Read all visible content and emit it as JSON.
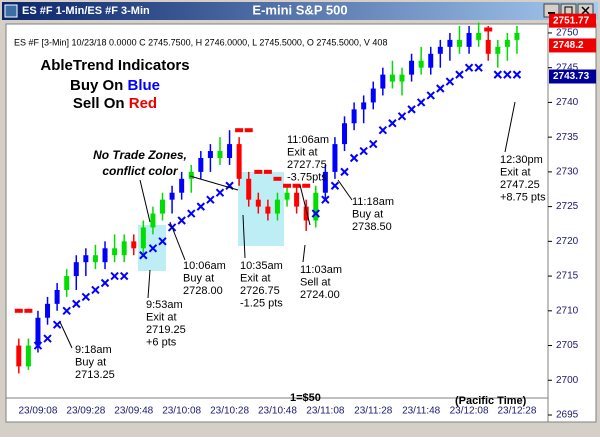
{
  "chart_data": {
    "type": "candlestick",
    "window_title": "ES #F 1-Min/ES #F 3-Min",
    "title": "E-mini S&P 500",
    "header_info": "ES #F [3-Min] 10/23/18  0.0000 C 2745.7500, H 2746.0000, L 2745.5000, O 2745.5000, V 408",
    "legend": {
      "heading": "AbleTrend Indicators",
      "buy": "Buy On ",
      "buy_color_word": "Blue",
      "sell": "Sell On ",
      "sell_color_word": "Red"
    },
    "categories": [
      null,
      null,
      "23/09:08",
      null,
      null,
      null,
      null,
      "23/09:28",
      null,
      null,
      null,
      null,
      "23/09:48",
      null,
      null,
      null,
      null,
      "23/10:08",
      null,
      null,
      null,
      null,
      "23/10:28",
      null,
      null,
      null,
      null,
      "23/10:48",
      null,
      null,
      null,
      null,
      "23/11:08",
      null,
      null,
      null,
      null,
      "23/11:28",
      null,
      null,
      null,
      null,
      "23/11:48",
      null,
      null,
      null,
      null,
      "23/12:08",
      null,
      null,
      null,
      null,
      "23/12:28"
    ],
    "ohlc": [
      [
        2705,
        2706,
        2701,
        2702
      ],
      [
        2702,
        2706,
        2701.5,
        2705
      ],
      [
        2705,
        2710,
        2704,
        2709
      ],
      [
        2709,
        2712,
        2708,
        2711
      ],
      [
        2711,
        2714,
        2710,
        2713
      ],
      [
        2713,
        2716,
        2712,
        2715
      ],
      [
        2715,
        2718,
        2713,
        2717
      ],
      [
        2717,
        2719,
        2715,
        2718
      ],
      [
        2718,
        2719.5,
        2716,
        2717
      ],
      [
        2717,
        2720,
        2716,
        2719
      ],
      [
        2719,
        2721,
        2717,
        2718
      ],
      [
        2718,
        2721,
        2717,
        2720
      ],
      [
        2720,
        2721,
        2718,
        2719
      ],
      [
        2719,
        2723,
        2718,
        2722
      ],
      [
        2722,
        2725,
        2721,
        2724
      ],
      [
        2724,
        2727,
        2723,
        2726
      ],
      [
        2726,
        2728,
        2724,
        2727
      ],
      [
        2727,
        2730,
        2726,
        2729
      ],
      [
        2729,
        2731,
        2727,
        2730
      ],
      [
        2730,
        2733,
        2729,
        2732
      ],
      [
        2732,
        2734,
        2730,
        2733
      ],
      [
        2733,
        2735,
        2731,
        2732
      ],
      [
        2732,
        2736,
        2731,
        2734
      ],
      [
        2734,
        2735,
        2728,
        2729
      ],
      [
        2729,
        2730,
        2725,
        2726
      ],
      [
        2726,
        2727,
        2724,
        2725
      ],
      [
        2725,
        2726,
        2723,
        2724
      ],
      [
        2724,
        2727,
        2723,
        2726
      ],
      [
        2726,
        2728,
        2725,
        2727
      ],
      [
        2727,
        2728,
        2724,
        2725
      ],
      [
        2725,
        2726,
        2721.5,
        2723
      ],
      [
        2723,
        2728,
        2722,
        2727
      ],
      [
        2727,
        2731,
        2726,
        2730
      ],
      [
        2730,
        2735,
        2729,
        2734
      ],
      [
        2734,
        2738,
        2733,
        2737
      ],
      [
        2737,
        2740,
        2736,
        2739
      ],
      [
        2739,
        2741,
        2737,
        2740
      ],
      [
        2740,
        2743,
        2739,
        2742
      ],
      [
        2742,
        2745,
        2741,
        2744
      ],
      [
        2744,
        2746,
        2742,
        2743
      ],
      [
        2743,
        2745,
        2741,
        2744
      ],
      [
        2744,
        2747,
        2743,
        2746
      ],
      [
        2746,
        2748,
        2744,
        2745
      ],
      [
        2745,
        2748,
        2744,
        2747
      ],
      [
        2747,
        2749,
        2745,
        2748
      ],
      [
        2748,
        2750,
        2746,
        2749
      ],
      [
        2749,
        2751,
        2747,
        2748
      ],
      [
        2748,
        2751,
        2747,
        2750
      ],
      [
        2750,
        2751.5,
        2748,
        2749
      ],
      [
        2749,
        2751,
        2746,
        2747
      ],
      [
        2747,
        2749,
        2745,
        2748
      ],
      [
        2748,
        2750,
        2746,
        2749
      ],
      [
        2749,
        2751,
        2747,
        2750
      ]
    ],
    "bar_colors": [
      "#ff0000",
      "#00dd00",
      "#0000ff",
      "#0000ff",
      "#0000ff",
      "#00dd00",
      "#0000ff",
      "#0000ff",
      "#00dd00",
      "#0000ff",
      "#00dd00",
      "#00dd00",
      "#ff0000",
      "#00dd00",
      "#00dd00",
      "#00dd00",
      "#0000ff",
      "#0000ff",
      "#00dd00",
      "#0000ff",
      "#0000ff",
      "#00dd00",
      "#0000ff",
      "#ff0000",
      "#ff0000",
      "#ff0000",
      "#ff0000",
      "#00dd00",
      "#00dd00",
      "#ff0000",
      "#ff0000",
      "#00dd00",
      "#0000ff",
      "#0000ff",
      "#0000ff",
      "#0000ff",
      "#0000ff",
      "#0000ff",
      "#0000ff",
      "#00dd00",
      "#00dd00",
      "#0000ff",
      "#00dd00",
      "#0000ff",
      "#0000ff",
      "#0000ff",
      "#00dd00",
      "#0000ff",
      "#00dd00",
      "#ff0000",
      "#00dd00",
      "#00dd00",
      "#00dd00"
    ],
    "series": [
      {
        "name": "Buy stop",
        "color": "#0000ff",
        "values": [
          null,
          null,
          2705,
          2706,
          2708,
          2710,
          2711,
          2712,
          2713,
          2714,
          2715,
          2715,
          null,
          2718,
          2719,
          2720,
          2722,
          2723,
          2724,
          2725,
          2726,
          2727,
          2728,
          null,
          null,
          null,
          null,
          null,
          null,
          null,
          null,
          2724,
          2726,
          2728,
          2730,
          2732,
          2733,
          2734,
          2736,
          2737,
          2738,
          2739,
          2740,
          2741,
          2742,
          2743,
          2744,
          2745,
          2745,
          null,
          2744,
          2744,
          2744
        ]
      },
      {
        "name": "Sell stop",
        "color": "#ff0000",
        "values": [
          2710,
          2710,
          null,
          null,
          null,
          null,
          null,
          null,
          null,
          null,
          null,
          null,
          null,
          null,
          null,
          null,
          null,
          null,
          null,
          null,
          null,
          null,
          null,
          2736,
          2736,
          2730,
          2730,
          2729,
          2728,
          2728,
          2728,
          null,
          null,
          null,
          null,
          null,
          null,
          null,
          null,
          null,
          null,
          null,
          null,
          null,
          null,
          null,
          null,
          null,
          null,
          2750.5,
          null,
          null,
          null
        ]
      }
    ],
    "price_flags": [
      {
        "value": 2751.77,
        "color": "#ee0000"
      },
      {
        "value": 2748.2,
        "color": "#ee0000"
      },
      {
        "value": 2743.73,
        "color": "#000099"
      }
    ],
    "ylim": [
      2695,
      2751
    ],
    "yticks": [
      2695,
      2700,
      2705,
      2710,
      2715,
      2720,
      2725,
      2730,
      2735,
      2740,
      2745,
      2750
    ],
    "zone_note": [
      "No Trade Zones,",
      "conflict color"
    ],
    "annotations": [
      {
        "lines": [
          "9:18am",
          "Buy at",
          "2713.25"
        ]
      },
      {
        "lines": [
          "9:53am",
          "Exit at",
          "2719.25",
          "+6 pts"
        ]
      },
      {
        "lines": [
          "10:06am",
          "Buy at",
          "2728.00"
        ]
      },
      {
        "lines": [
          "10:35am",
          "Exit at",
          "2726.75",
          "-1.25 pts"
        ]
      },
      {
        "lines": [
          "11:06am",
          "Exit at",
          "2727.75",
          "-3.75pts"
        ]
      },
      {
        "lines": [
          "11:03am",
          "Sell at",
          "2724.00"
        ]
      },
      {
        "lines": [
          "11:18am",
          "Buy at",
          "2738.50"
        ]
      },
      {
        "lines": [
          "12:30pm",
          "Exit at",
          "2747.25",
          "+8.75 pts"
        ]
      }
    ],
    "point_value_note": "1=$50",
    "timezone_note": "(Pacific Time)"
  }
}
